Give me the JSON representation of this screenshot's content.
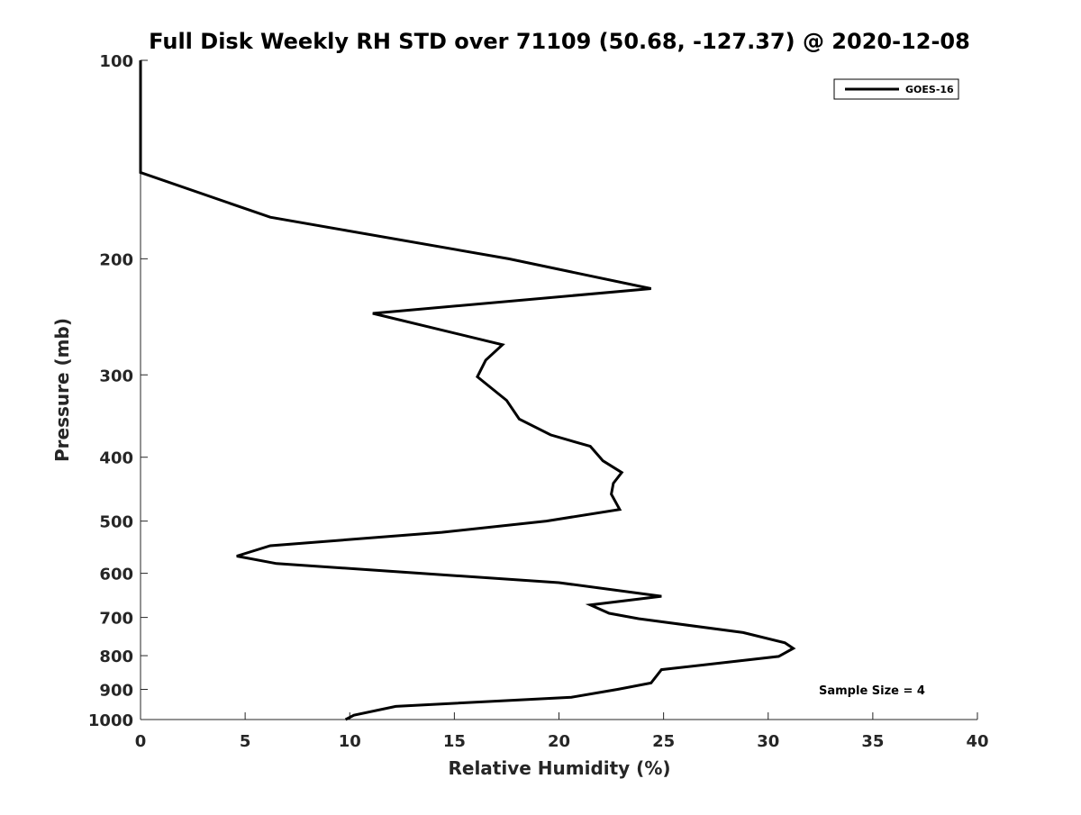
{
  "chart_data": {
    "type": "line",
    "title": "Full Disk Weekly RH STD over 71109 (50.68, -127.37) @ 2020-12-08",
    "xlabel": "Relative Humidity (%)",
    "ylabel": "Pressure (mb)",
    "xlim": [
      0,
      40
    ],
    "ylim": [
      100,
      1000
    ],
    "y_scale": "log",
    "y_reversed": true,
    "grid": false,
    "legend_position": "top-right",
    "x_ticks": [
      0,
      5,
      10,
      15,
      20,
      25,
      30,
      35,
      40
    ],
    "x_tick_labels": [
      "0",
      "5",
      "10",
      "15",
      "20",
      "25",
      "30",
      "35",
      "40"
    ],
    "y_ticks": [
      100,
      200,
      300,
      400,
      500,
      600,
      700,
      800,
      900,
      1000
    ],
    "y_tick_labels": [
      "100",
      "200",
      "300",
      "400",
      "500",
      "600",
      "700",
      "800",
      "900",
      "1000"
    ],
    "series": [
      {
        "name": "GOES-16",
        "color": "#000000",
        "x": [
          0,
          0,
          0,
          0,
          6.2,
          17.6,
          24.4,
          11.1,
          17.3,
          16.5,
          16.1,
          17.5,
          18.1,
          19.6,
          21.5,
          22.1,
          23.0,
          22.6,
          22.5,
          22.9,
          19.4,
          14.4,
          6.2,
          4.6,
          6.5,
          20.0,
          24.9,
          21.5,
          22.4,
          23.8,
          28.8,
          30.8,
          31.2,
          30.5,
          24.9,
          24.4,
          22.8,
          20.6,
          12.2,
          10.2,
          9.8
        ],
        "y": [
          100,
          110,
          120,
          148,
          173,
          200,
          222,
          242,
          270,
          285,
          302,
          328,
          350,
          370,
          385,
          405,
          422,
          438,
          455,
          480,
          500,
          520,
          545,
          565,
          580,
          620,
          650,
          670,
          690,
          703,
          738,
          765,
          780,
          802,
          840,
          880,
          900,
          925,
          955,
          985,
          1000
        ]
      }
    ],
    "annotations": [
      "Sample Size = 4"
    ]
  }
}
